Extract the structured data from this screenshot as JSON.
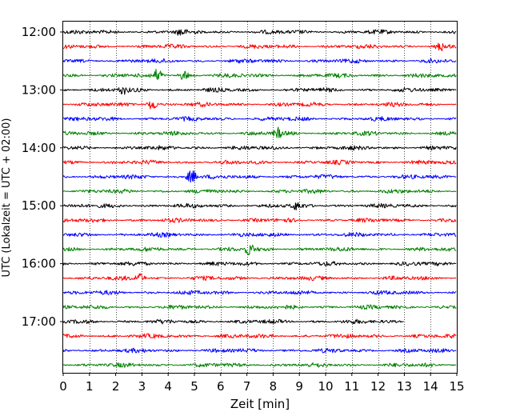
{
  "chart_data": {
    "type": "line",
    "description_kind": "helicorder",
    "xlabel": "Zeit  [min]",
    "ylabel": "UTC (Lokalzeit = UTC + 02:00)",
    "xlim": [
      0,
      15
    ],
    "x_ticks": [
      "0",
      "1",
      "2",
      "3",
      "4",
      "5",
      "6",
      "7",
      "8",
      "9",
      "10",
      "11",
      "12",
      "13",
      "14",
      "15"
    ],
    "y_tick_labels": [
      "12:00",
      "13:00",
      "14:00",
      "15:00",
      "16:00",
      "17:00"
    ],
    "trace_colors": [
      "#000000",
      "#ff0000",
      "#0000ff",
      "#008000"
    ],
    "grid": "vertical dotted",
    "traces": [
      {
        "start": "12:00",
        "color": "#000000",
        "end_min": 15
      },
      {
        "start": "12:15",
        "color": "#ff0000",
        "end_min": 15
      },
      {
        "start": "12:30",
        "color": "#0000ff",
        "end_min": 15
      },
      {
        "start": "12:45",
        "color": "#008000",
        "end_min": 15
      },
      {
        "start": "13:00",
        "color": "#000000",
        "end_min": 15
      },
      {
        "start": "13:15",
        "color": "#ff0000",
        "end_min": 15
      },
      {
        "start": "13:30",
        "color": "#0000ff",
        "end_min": 15
      },
      {
        "start": "13:45",
        "color": "#008000",
        "end_min": 15
      },
      {
        "start": "14:00",
        "color": "#000000",
        "end_min": 15
      },
      {
        "start": "14:15",
        "color": "#ff0000",
        "end_min": 15
      },
      {
        "start": "14:30",
        "color": "#0000ff",
        "end_min": 15
      },
      {
        "start": "14:45",
        "color": "#008000",
        "end_min": 15
      },
      {
        "start": "15:00",
        "color": "#000000",
        "end_min": 15
      },
      {
        "start": "15:15",
        "color": "#ff0000",
        "end_min": 15
      },
      {
        "start": "15:30",
        "color": "#0000ff",
        "end_min": 15
      },
      {
        "start": "15:45",
        "color": "#008000",
        "end_min": 15
      },
      {
        "start": "16:00",
        "color": "#000000",
        "end_min": 15
      },
      {
        "start": "16:15",
        "color": "#ff0000",
        "end_min": 15
      },
      {
        "start": "16:30",
        "color": "#0000ff",
        "end_min": 15
      },
      {
        "start": "16:45",
        "color": "#008000",
        "end_min": 15
      },
      {
        "start": "17:00",
        "color": "#000000",
        "end_min": 13
      },
      {
        "start": "17:15",
        "color": "#ff0000",
        "end_min": 15
      },
      {
        "start": "17:30",
        "color": "#0000ff",
        "end_min": 15
      },
      {
        "start": "17:45",
        "color": "#008000",
        "end_min": 15
      }
    ],
    "events": [
      {
        "start": "12:00",
        "minute": 4.5,
        "amp": 5
      },
      {
        "start": "12:15",
        "minute": 14.4,
        "amp": 5
      },
      {
        "start": "12:45",
        "minute": 3.6,
        "amp": 8
      },
      {
        "start": "12:45",
        "minute": 4.6,
        "amp": 5
      },
      {
        "start": "13:00",
        "minute": 2.3,
        "amp": 5
      },
      {
        "start": "13:15",
        "minute": 3.4,
        "amp": 6
      },
      {
        "start": "13:45",
        "minute": 8.2,
        "amp": 6
      },
      {
        "start": "14:30",
        "minute": 4.9,
        "amp": 8
      },
      {
        "start": "15:00",
        "minute": 8.9,
        "amp": 5
      },
      {
        "start": "15:45",
        "minute": 7.1,
        "amp": 7
      },
      {
        "start": "16:15",
        "minute": 2.9,
        "amp": 5
      }
    ]
  }
}
